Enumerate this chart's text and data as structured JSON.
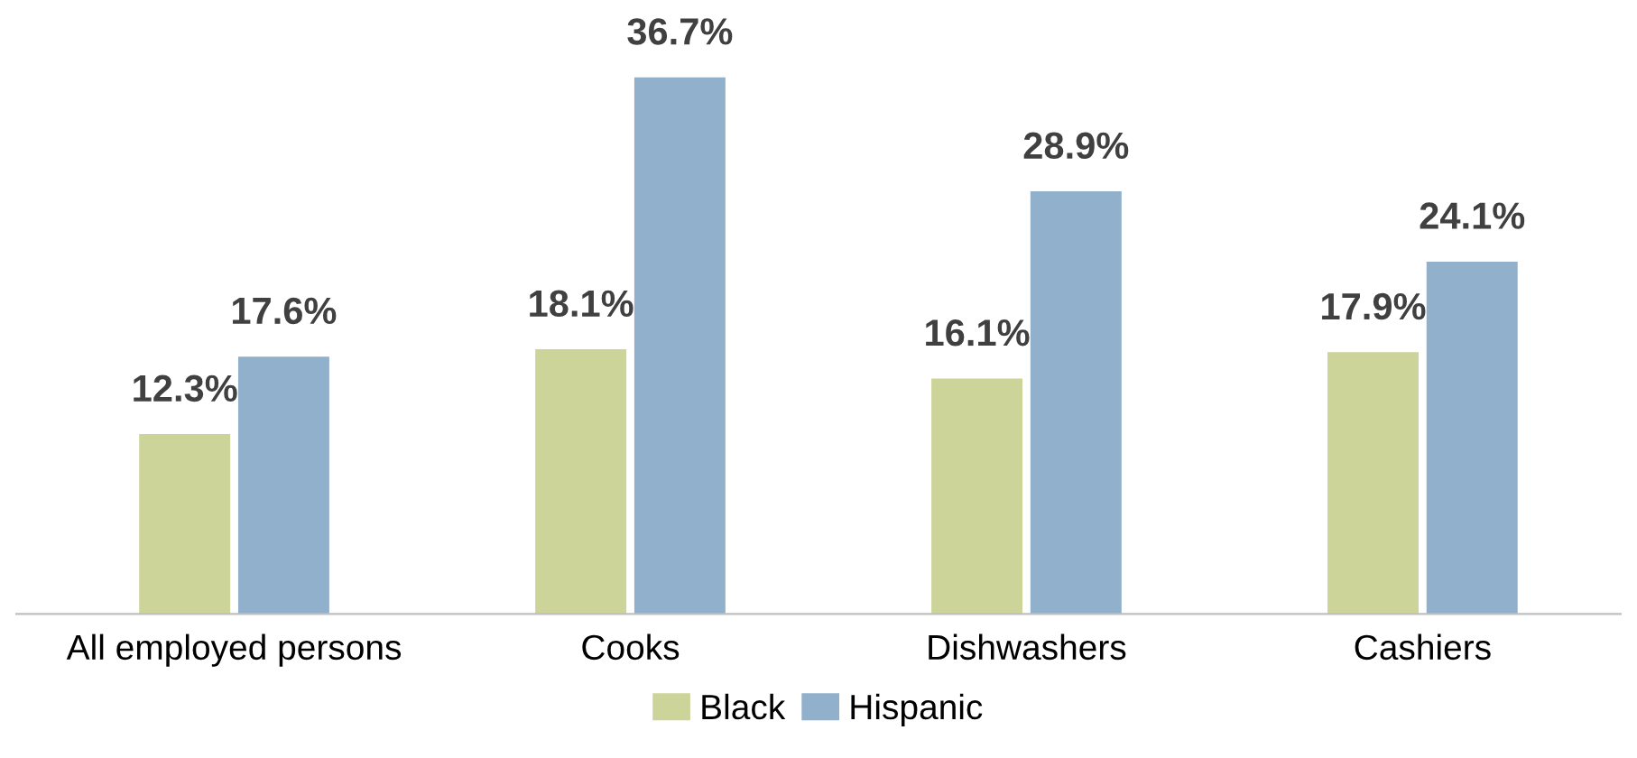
{
  "chart_data": {
    "type": "bar",
    "categories": [
      "All employed persons",
      "Cooks",
      "Dishwashers",
      "Cashiers"
    ],
    "series": [
      {
        "name": "Black",
        "color": "#cdd49a",
        "values": [
          12.3,
          18.1,
          16.1,
          17.9
        ],
        "value_labels": [
          "12.3%",
          "18.1%",
          "16.1%",
          "17.9%"
        ]
      },
      {
        "name": "Hispanic",
        "color": "#91b0cc",
        "values": [
          17.6,
          36.7,
          28.9,
          24.1
        ],
        "value_labels": [
          "17.6%",
          "36.7%",
          "28.9%",
          "24.1%"
        ]
      }
    ],
    "legend": "bottom",
    "grid": false
  }
}
